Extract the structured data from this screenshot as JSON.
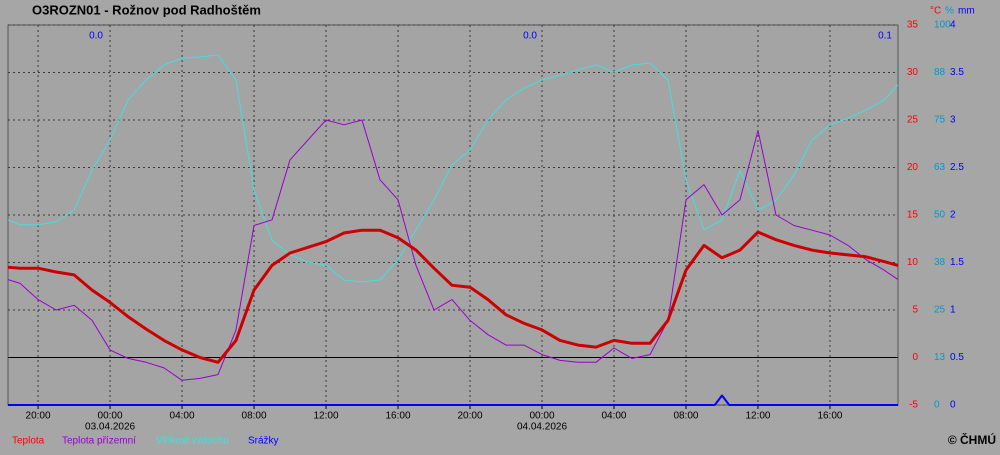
{
  "chart_data": {
    "type": "line",
    "title": "O3ROZN01 - Rožnov pod Radhoštěm",
    "x": [
      -5.67,
      -5,
      -4,
      -3,
      -2,
      -1,
      0,
      1,
      2,
      3,
      4,
      5,
      6,
      7,
      8,
      9,
      10,
      11,
      12,
      13,
      14,
      15,
      16,
      17,
      18,
      19,
      20,
      21,
      22,
      23,
      24,
      25,
      26,
      27,
      28,
      29,
      30,
      31,
      32,
      33,
      34,
      35,
      36,
      37,
      38,
      39,
      40,
      41,
      42,
      43,
      43.78
    ],
    "xlim": [
      -5.67,
      43.78
    ],
    "xticks": [
      {
        "value": -4,
        "label": "20:00"
      },
      {
        "value": 0,
        "label": "00:00"
      },
      {
        "value": 4,
        "label": "04:00"
      },
      {
        "value": 8,
        "label": "08:00"
      },
      {
        "value": 12,
        "label": "12:00"
      },
      {
        "value": 16,
        "label": "16:00"
      },
      {
        "value": 20,
        "label": "20:00"
      },
      {
        "value": 24,
        "label": "00:00"
      },
      {
        "value": 28,
        "label": "04:00"
      },
      {
        "value": 32,
        "label": "08:00"
      },
      {
        "value": 36,
        "label": "12:00"
      },
      {
        "value": 40,
        "label": "16:00"
      }
    ],
    "date_labels": [
      {
        "value": 0,
        "label": "03.04.2026"
      },
      {
        "value": 24,
        "label": "04.04.2026"
      }
    ],
    "ylim": [
      -5,
      35
    ],
    "yticks": [
      -5,
      0,
      5,
      10,
      15,
      20,
      25,
      30,
      35
    ],
    "y_unit": "°C",
    "y2lim": [
      0,
      100
    ],
    "y2ticks": [
      0,
      {
        "value": 12.5,
        "label": "13"
      },
      25,
      {
        "value": 37.5,
        "label": "38"
      },
      50,
      {
        "value": 62.5,
        "label": "63"
      },
      75,
      {
        "value": 87.5,
        "label": "88"
      },
      100
    ],
    "y2_unit": "%",
    "y3lim": [
      0,
      4
    ],
    "y3ticks": [
      0,
      0.5,
      1,
      1.5,
      2,
      2.5,
      3,
      3.5,
      4
    ],
    "y3_unit": "mm",
    "precip_totals": [
      "0.0",
      "0.0",
      "0.1"
    ],
    "grid": true,
    "series": [
      {
        "name": "Teplota",
        "color": "#cc0000",
        "values": [
          9.5,
          9.4,
          9.4,
          9.0,
          8.7,
          7.1,
          5.8,
          4.3,
          3.0,
          1.8,
          0.8,
          0.0,
          -0.5,
          1.8,
          7.1,
          9.7,
          11.0,
          11.6,
          12.2,
          13.1,
          13.4,
          13.4,
          12.6,
          11.3,
          9.4,
          7.6,
          7.4,
          6.1,
          4.5,
          3.6,
          2.9,
          1.8,
          1.3,
          1.1,
          1.8,
          1.5,
          1.5,
          3.9,
          9.2,
          11.8,
          10.5,
          11.3,
          13.2,
          12.4,
          11.8,
          11.3,
          11.0,
          10.8,
          10.6,
          10.1,
          9.7
        ]
      },
      {
        "name": "Teplota přízemní",
        "color": "#9900cc",
        "values": [
          8.2,
          7.8,
          6.1,
          5.0,
          5.5,
          3.9,
          0.8,
          -0.1,
          -0.5,
          -1.1,
          -2.4,
          -2.2,
          -1.8,
          2.9,
          13.9,
          14.5,
          20.8,
          22.9,
          25.0,
          24.5,
          25.0,
          18.7,
          16.6,
          9.7,
          5.0,
          6.1,
          3.9,
          2.4,
          1.3,
          1.3,
          0.3,
          -0.3,
          -0.5,
          -0.5,
          1.0,
          -0.1,
          0.3,
          3.9,
          16.6,
          18.2,
          15.0,
          16.6,
          23.9,
          15.0,
          13.9,
          13.4,
          12.9,
          11.8,
          10.3,
          9.2,
          8.2
        ]
      },
      {
        "name": "Vlhkost vzduchu",
        "color": "#40e0e0",
        "axis": "y2",
        "values": [
          48.7,
          47.4,
          47.4,
          48.2,
          51.3,
          61.8,
          69.7,
          80.3,
          85.5,
          89.5,
          91.3,
          91.6,
          92.1,
          85.5,
          56.6,
          43.4,
          39.5,
          37.6,
          36.8,
          32.9,
          32.4,
          32.9,
          38.2,
          46.1,
          53.9,
          63.2,
          67.1,
          75.0,
          80.3,
          83.4,
          85.5,
          86.8,
          88.2,
          89.5,
          87.6,
          89.5,
          90.0,
          85.5,
          59.2,
          46.1,
          48.7,
          61.8,
          51.3,
          53.9,
          60.5,
          69.7,
          73.7,
          75.5,
          77.6,
          80.3,
          84.2
        ]
      },
      {
        "name": "Srážky",
        "color": "#0000ff",
        "axis": "y3",
        "x": [
          -5.67,
          33.6,
          34,
          34.4,
          43.78
        ],
        "values": [
          0,
          0,
          0.1,
          0,
          0
        ]
      }
    ],
    "copyright": "© ČHMÚ"
  }
}
